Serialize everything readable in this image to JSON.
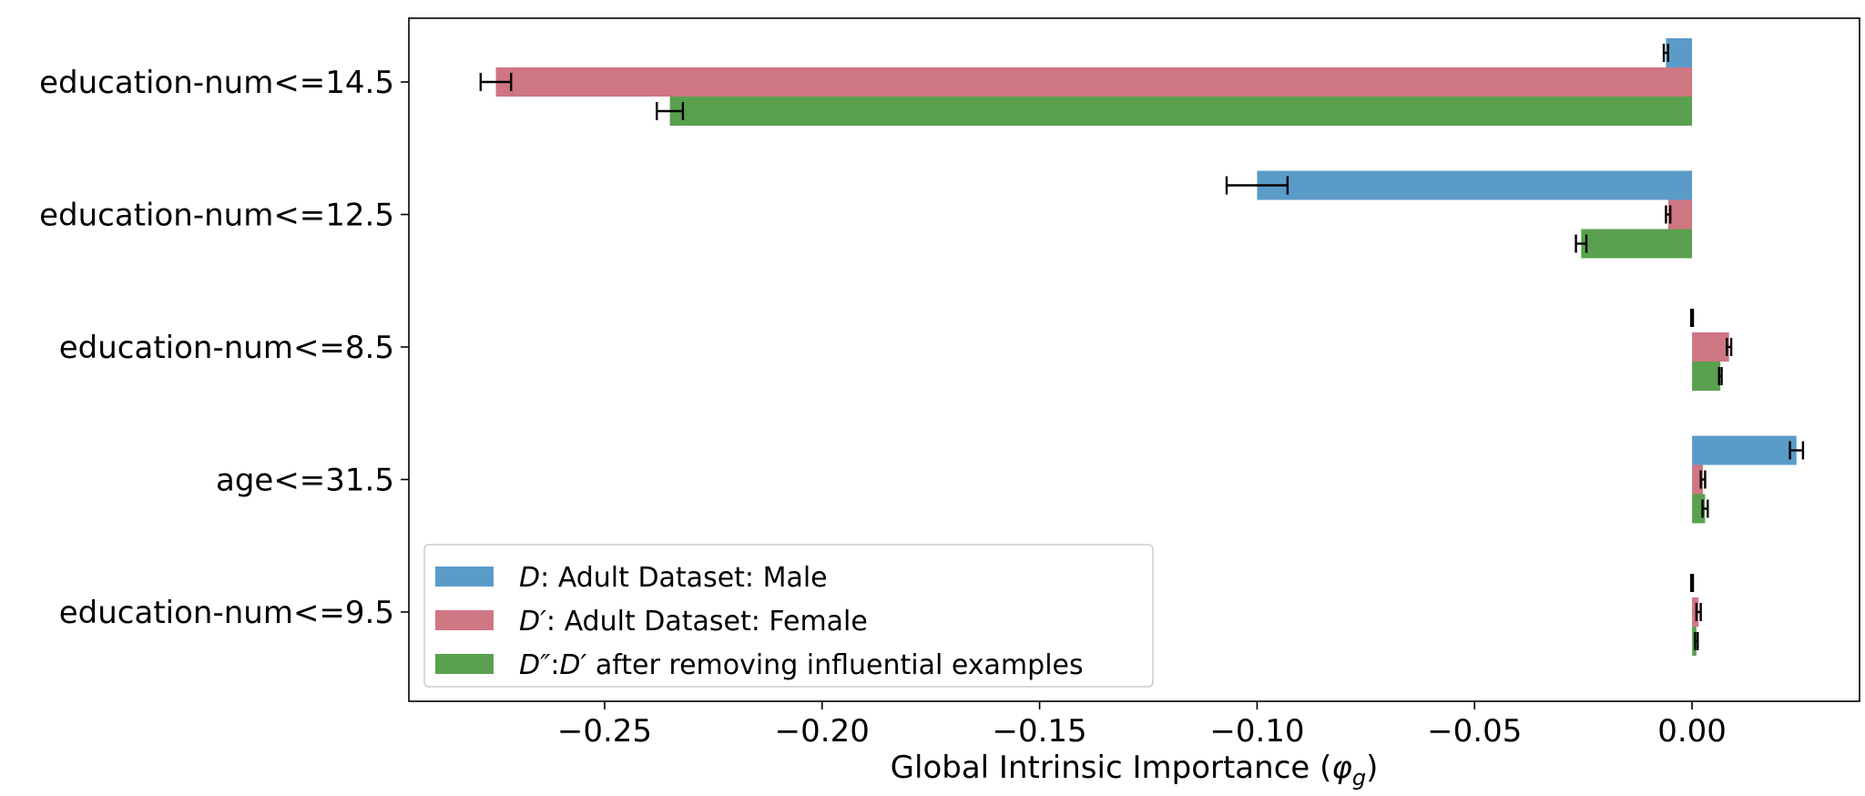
{
  "chart_data": {
    "type": "bar",
    "orientation": "horizontal",
    "xlabel": "Global Intrinsic Importance",
    "xlabel_symbol": "φ",
    "xlabel_subscript": "g",
    "xlim": [
      -0.295,
      0.0385
    ],
    "xticks": [
      -0.25,
      -0.2,
      -0.15,
      -0.1,
      -0.05,
      0.0
    ],
    "xtick_labels": [
      "−0.25",
      "−0.20",
      "−0.15",
      "−0.10",
      "−0.05",
      "0.00"
    ],
    "categories": [
      "education-num<=14.5",
      "education-num<=12.5",
      "education-num<=8.5",
      "age<=31.5",
      "education-num<=9.5"
    ],
    "series": [
      {
        "name": "D: Adult Dataset: Male",
        "color": "#5b9bc8",
        "values": [
          -0.006,
          -0.1,
          0.0,
          0.024,
          0.0
        ],
        "errors": [
          0.0005,
          0.007,
          0.0002,
          0.0015,
          0.0002
        ]
      },
      {
        "name": "D′: Adult Dataset: Female",
        "color": "#cf7683",
        "values": [
          -0.275,
          -0.0055,
          0.0085,
          0.0025,
          0.0015
        ],
        "errors": [
          0.0035,
          0.0005,
          0.0005,
          0.0005,
          0.0005
        ]
      },
      {
        "name": "D″:D′ after removing influential examples",
        "color": "#59a14f",
        "values": [
          -0.235,
          -0.0255,
          0.0065,
          0.003,
          0.001
        ],
        "errors": [
          0.003,
          0.0012,
          0.0003,
          0.0006,
          0.0003
        ]
      }
    ],
    "legend": {
      "position": "lower-left",
      "entries": [
        {
          "math": "D",
          "text": ": Adult Dataset: Male"
        },
        {
          "math": "D′",
          "text": ": Adult Dataset: Female"
        },
        {
          "math": "D″",
          "text": ":",
          "math2": "D′",
          "text2": " after removing influential examples"
        }
      ]
    }
  }
}
